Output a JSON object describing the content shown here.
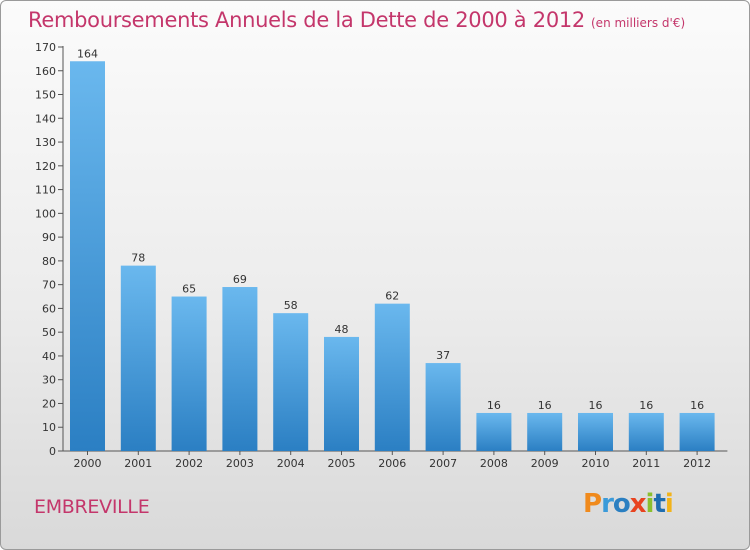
{
  "header": {
    "title": "Remboursements Annuels de la Dette de 2000 à 2012",
    "unit": "(en milliers d'€)"
  },
  "footer": {
    "commune": "EMBREVILLE",
    "brand": "Proxiti"
  },
  "colors": {
    "title": "#c4366b",
    "bar_light": "#6ab8ee",
    "bar_dark": "#2b7fc3",
    "brand_letters": [
      "#f08a1c",
      "#3a9ad9",
      "#2a7fc1",
      "#e8431f",
      "#8bbf2e",
      "#1f6db0",
      "#f2b31a"
    ]
  },
  "chart_data": {
    "type": "bar",
    "categories": [
      "2000",
      "2001",
      "2002",
      "2003",
      "2004",
      "2005",
      "2006",
      "2007",
      "2008",
      "2009",
      "2010",
      "2011",
      "2012"
    ],
    "values": [
      164,
      78,
      65,
      69,
      58,
      48,
      62,
      37,
      16,
      16,
      16,
      16,
      16
    ],
    "title": "Remboursements Annuels de la Dette de 2000 à 2012",
    "xlabel": "",
    "ylabel": "",
    "ylim": [
      0,
      170
    ],
    "yticks": [
      0,
      10,
      20,
      30,
      40,
      50,
      60,
      70,
      80,
      90,
      100,
      110,
      120,
      130,
      140,
      150,
      160,
      170
    ],
    "grid": false,
    "data_labels": true
  }
}
